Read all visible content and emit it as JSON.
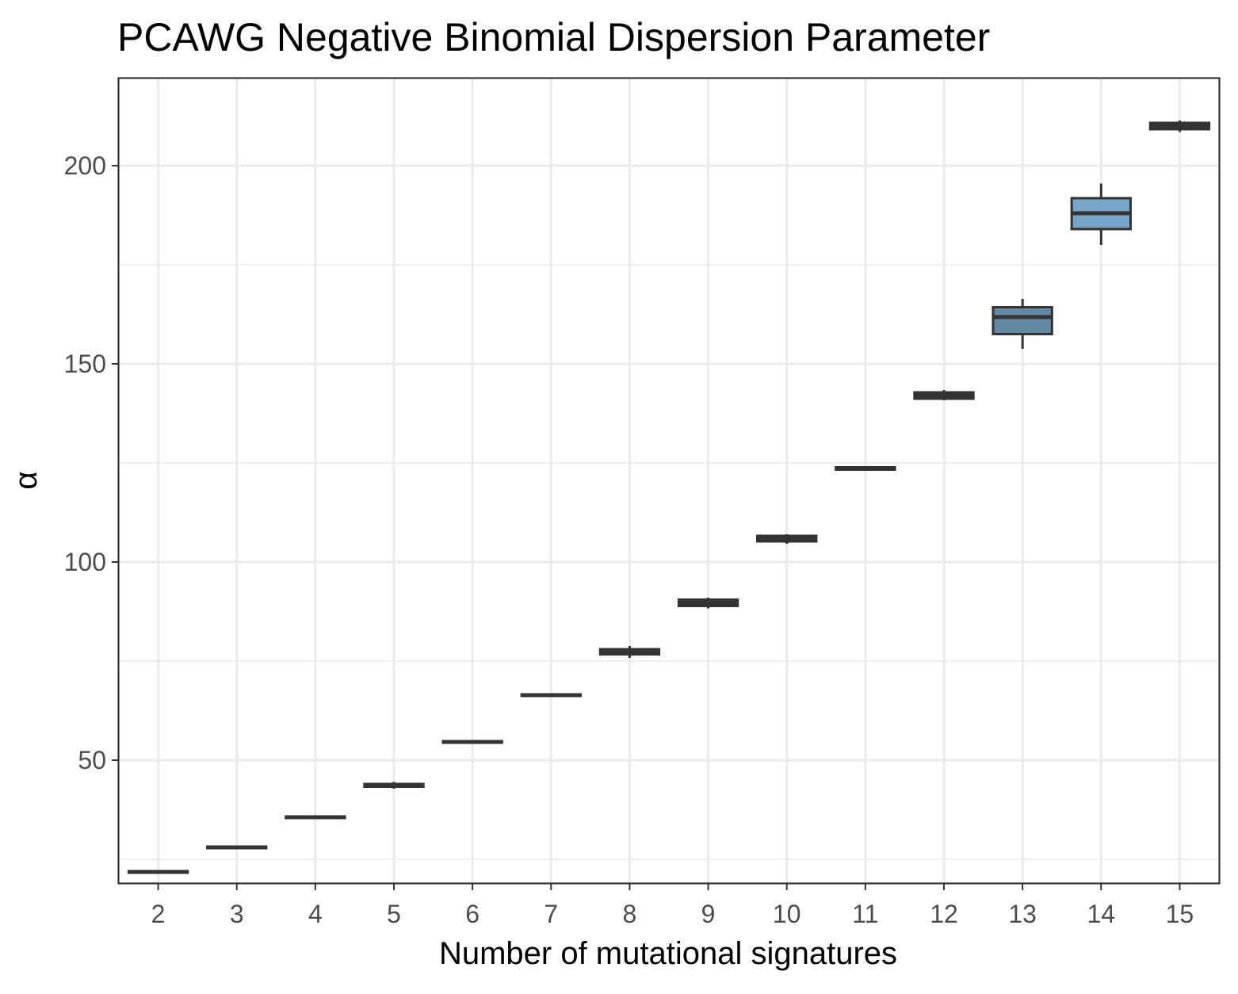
{
  "chart_data": {
    "type": "boxplot",
    "title": "PCAWG Negative Binomial Dispersion Parameter",
    "xlabel": "Number of mutational signatures",
    "ylabel": "α",
    "categories": [
      "2",
      "3",
      "4",
      "5",
      "6",
      "7",
      "8",
      "9",
      "10",
      "11",
      "12",
      "13",
      "14",
      "15"
    ],
    "ylim": [
      19,
      222
    ],
    "yticks": [
      50,
      100,
      150,
      200
    ],
    "grid": true,
    "legend": "none",
    "fill_color_min": "#2b2b2b",
    "fill_color_max": "#85c1ec",
    "outline_color": "#333333",
    "boxes": [
      {
        "category": "2",
        "min": 21.4,
        "q1": 21.6,
        "median": 21.8,
        "q3": 22.0,
        "max": 22.2
      },
      {
        "category": "3",
        "min": 27.6,
        "q1": 27.8,
        "median": 28.0,
        "q3": 28.2,
        "max": 28.4
      },
      {
        "category": "4",
        "min": 35.2,
        "q1": 35.4,
        "median": 35.6,
        "q3": 35.8,
        "max": 36.0
      },
      {
        "category": "5",
        "min": 42.8,
        "q1": 43.3,
        "median": 43.6,
        "q3": 44.0,
        "max": 44.5
      },
      {
        "category": "6",
        "min": 54.2,
        "q1": 54.4,
        "median": 54.6,
        "q3": 54.8,
        "max": 55.0
      },
      {
        "category": "7",
        "min": 66.0,
        "q1": 66.2,
        "median": 66.4,
        "q3": 66.6,
        "max": 66.8
      },
      {
        "category": "8",
        "min": 75.8,
        "q1": 76.7,
        "median": 77.3,
        "q3": 78.0,
        "max": 78.8
      },
      {
        "category": "9",
        "min": 88.3,
        "q1": 88.9,
        "median": 89.6,
        "q3": 90.5,
        "max": 91.0
      },
      {
        "category": "10",
        "min": 104.6,
        "q1": 105.2,
        "median": 105.8,
        "q3": 106.6,
        "max": 107.0
      },
      {
        "category": "11",
        "min": 123.1,
        "q1": 123.3,
        "median": 123.5,
        "q3": 123.9,
        "max": 124.2
      },
      {
        "category": "12",
        "min": 140.8,
        "q1": 141.2,
        "median": 142.0,
        "q3": 142.8,
        "max": 143.4
      },
      {
        "category": "13",
        "min": 153.8,
        "q1": 157.5,
        "median": 161.8,
        "q3": 164.3,
        "max": 166.4
      },
      {
        "category": "14",
        "min": 180.0,
        "q1": 184.0,
        "median": 188.0,
        "q3": 191.8,
        "max": 195.5
      },
      {
        "category": "15",
        "min": 208.5,
        "q1": 209.2,
        "median": 210.0,
        "q3": 210.8,
        "max": 211.4
      }
    ]
  }
}
